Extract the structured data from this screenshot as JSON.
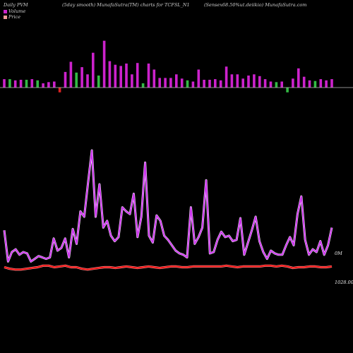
{
  "header": {
    "left": "Daily PVM",
    "middle": "(5day smooth) MunafaSutra(TM) charts for TCFSL_N1",
    "right": "(Sensex68.50%ut.deiikio) MunafaSutra.com"
  },
  "legend": {
    "volume": "Volume",
    "price": "Price"
  },
  "colors": {
    "volume_up": "#cc22cc",
    "volume_down": "#33bb44",
    "volume_other": "#dd2222",
    "volume_line": "#cc33ee",
    "price_line": "#ee1111",
    "baseline": "#bbbbbb"
  },
  "chart_data": {
    "type": "line",
    "volume_bars": [
      {
        "v": 0.14,
        "c": "up"
      },
      {
        "v": 0.14,
        "c": "down"
      },
      {
        "v": 0.12,
        "c": "up"
      },
      {
        "v": 0.13,
        "c": "up"
      },
      {
        "v": 0.13,
        "c": "down"
      },
      {
        "v": 0.14,
        "c": "up"
      },
      {
        "v": 0.12,
        "c": "down"
      },
      {
        "v": 0.07,
        "c": "up"
      },
      {
        "v": 0.09,
        "c": "up"
      },
      {
        "v": 0.1,
        "c": "up"
      },
      {
        "v": -0.08,
        "c": "other"
      },
      {
        "v": 0.26,
        "c": "up"
      },
      {
        "v": 0.43,
        "c": "up"
      },
      {
        "v": 0.25,
        "c": "down"
      },
      {
        "v": 0.34,
        "c": "up"
      },
      {
        "v": 0.22,
        "c": "up"
      },
      {
        "v": 0.58,
        "c": "up"
      },
      {
        "v": 0.2,
        "c": "down"
      },
      {
        "v": 0.78,
        "c": "up"
      },
      {
        "v": 0.44,
        "c": "up"
      },
      {
        "v": 0.38,
        "c": "up"
      },
      {
        "v": 0.36,
        "c": "up"
      },
      {
        "v": 0.4,
        "c": "up"
      },
      {
        "v": 0.22,
        "c": "up"
      },
      {
        "v": 0.41,
        "c": "up"
      },
      {
        "v": 0.07,
        "c": "down"
      },
      {
        "v": 0.4,
        "c": "up"
      },
      {
        "v": 0.3,
        "c": "up"
      },
      {
        "v": 0.16,
        "c": "up"
      },
      {
        "v": 0.16,
        "c": "up"
      },
      {
        "v": 0.16,
        "c": "up"
      },
      {
        "v": 0.22,
        "c": "up"
      },
      {
        "v": 0.15,
        "c": "up"
      },
      {
        "v": 0.12,
        "c": "down"
      },
      {
        "v": 0.1,
        "c": "up"
      },
      {
        "v": 0.3,
        "c": "up"
      },
      {
        "v": 0.13,
        "c": "up"
      },
      {
        "v": 0.13,
        "c": "up"
      },
      {
        "v": 0.14,
        "c": "up"
      },
      {
        "v": 0.12,
        "c": "up"
      },
      {
        "v": 0.35,
        "c": "up"
      },
      {
        "v": 0.22,
        "c": "up"
      },
      {
        "v": 0.22,
        "c": "up"
      },
      {
        "v": 0.15,
        "c": "up"
      },
      {
        "v": 0.2,
        "c": "up"
      },
      {
        "v": 0.22,
        "c": "up"
      },
      {
        "v": 0.19,
        "c": "up"
      },
      {
        "v": 0.14,
        "c": "up"
      },
      {
        "v": 0.1,
        "c": "up"
      },
      {
        "v": 0.09,
        "c": "down"
      },
      {
        "v": 0.1,
        "c": "up"
      },
      {
        "v": -0.08,
        "c": "down"
      },
      {
        "v": 0.15,
        "c": "up"
      },
      {
        "v": 0.32,
        "c": "up"
      },
      {
        "v": 0.18,
        "c": "up"
      },
      {
        "v": 0.12,
        "c": "up"
      },
      {
        "v": 0.11,
        "c": "down"
      },
      {
        "v": 0.14,
        "c": "up"
      },
      {
        "v": 0.12,
        "c": "up"
      },
      {
        "v": 0.14,
        "c": "up"
      }
    ],
    "volume_line": [
      47,
      86,
      56,
      57,
      65,
      62,
      50,
      68,
      58,
      53,
      50,
      57,
      72,
      69,
      85,
      90,
      59,
      57,
      60,
      54,
      56,
      57,
      50,
      49,
      60,
      71,
      70,
      63,
      66,
      64,
      70,
      66,
      68,
      70,
      71,
      58,
      63,
      66,
      59,
      75
    ],
    "volume_line_raw": [
      0.28,
      0.05,
      0.12,
      0.14,
      0.1,
      0.12,
      0.11,
      0.05,
      0.07,
      0.09,
      0.08,
      0.07,
      0.08,
      0.22,
      0.13,
      0.15,
      0.22,
      0.08,
      0.29,
      0.18,
      0.42,
      0.38,
      0.63,
      0.87,
      0.38,
      0.62,
      0.3,
      0.35,
      0.24,
      0.2,
      0.23,
      0.45,
      0.42,
      0.4,
      0.55,
      0.23,
      0.38,
      0.78,
      0.24,
      0.19,
      0.39,
      0.35,
      0.24,
      0.21,
      0.17,
      0.13,
      0.11,
      0.1,
      0.08,
      0.45,
      0.18,
      0.23,
      0.3,
      0.65,
      0.11,
      0.12,
      0.21,
      0.27,
      0.23,
      0.24,
      0.2,
      0.21,
      0.37,
      0.1,
      0.19,
      0.28,
      0.38,
      0.2,
      0.12,
      0.07,
      0.13,
      0.11,
      0.1,
      0.1,
      0.17,
      0.23,
      0.17,
      0.4,
      0.53,
      0.21,
      0.1,
      0.14,
      0.12,
      0.2,
      0.1,
      0.17,
      0.3
    ],
    "price_line": [
      0.05,
      0.03,
      0.02,
      0.02,
      0.03,
      0.04,
      0.05,
      0.07,
      0.07,
      0.05,
      0.06,
      0.07,
      0.05,
      0.05,
      0.03,
      0.02,
      0.03,
      0.04,
      0.05,
      0.05,
      0.04,
      0.05,
      0.06,
      0.05,
      0.04,
      0.05,
      0.06,
      0.05,
      0.04,
      0.05,
      0.06,
      0.06,
      0.05,
      0.05,
      0.06,
      0.06,
      0.06,
      0.06,
      0.06,
      0.06,
      0.07,
      0.06,
      0.05,
      0.06,
      0.06,
      0.06,
      0.06,
      0.07,
      0.07,
      0.06,
      0.07,
      0.06,
      0.04,
      0.05,
      0.05,
      0.06,
      0.06,
      0.05,
      0.05,
      0.06
    ],
    "labels": {
      "volume_axis": "0M",
      "price_axis": "1028.00"
    }
  }
}
